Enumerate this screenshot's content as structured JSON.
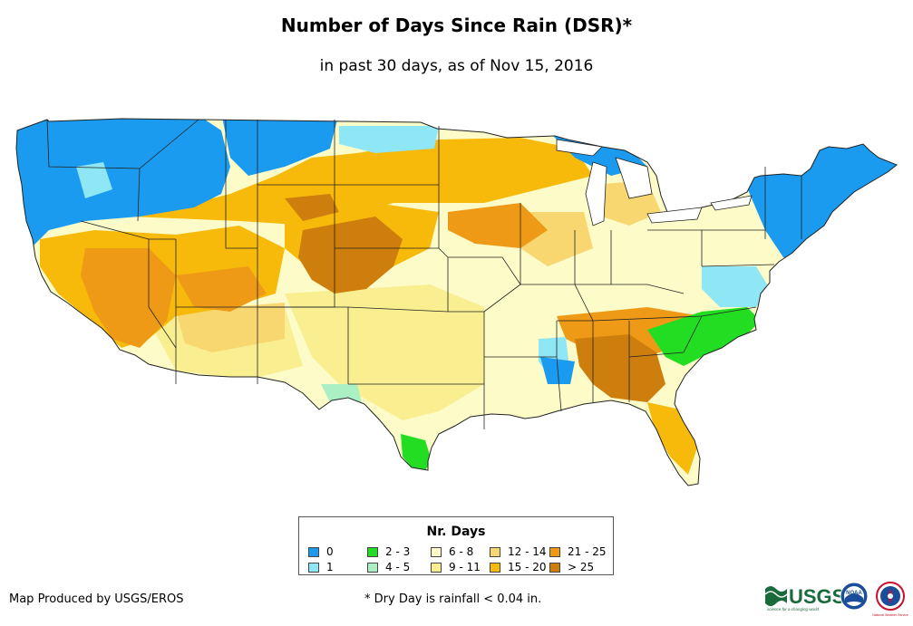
{
  "title": "Number of Days Since Rain (DSR)*",
  "subtitle": "in past 30 days, as of Nov 15, 2016",
  "legend": {
    "title": "Nr. Days",
    "items": [
      {
        "label": "0",
        "color": "#1a9bef"
      },
      {
        "label": "1",
        "color": "#8fe6f5"
      },
      {
        "label": "2 - 3",
        "color": "#22dd22"
      },
      {
        "label": "4 - 5",
        "color": "#aaf0c4"
      },
      {
        "label": "6 - 8",
        "color": "#fdfcc8"
      },
      {
        "label": "9 - 11",
        "color": "#f9ee90"
      },
      {
        "label": "12 - 14",
        "color": "#f8d670"
      },
      {
        "label": "15 - 20",
        "color": "#f7b90a"
      },
      {
        "label": "21 - 25",
        "color": "#ee9a16"
      },
      {
        "label": "> 25",
        "color": "#cd7e0c"
      }
    ]
  },
  "credit": "Map Produced by USGS/EROS",
  "footnote": "* Dry Day is rainfall < 0.04 in.",
  "logos": {
    "usgs": "USGS",
    "usgs_tagline": "science for a changing world",
    "noaa": "NOAA",
    "nws": "National Weather Service"
  }
}
